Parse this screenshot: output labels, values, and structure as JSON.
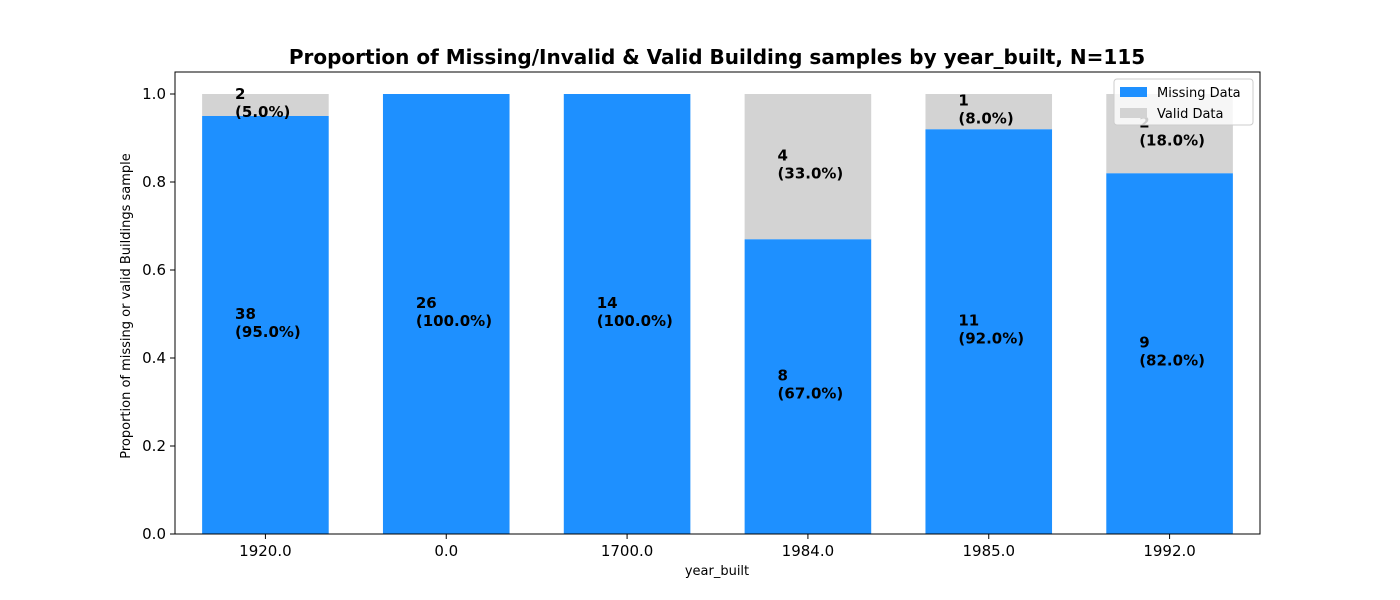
{
  "chart_data": {
    "type": "bar",
    "stacked": true,
    "title": "Proportion of Missing/Invalid & Valid Building samples by year_built, N=115",
    "xlabel": "year_built",
    "ylabel": "Proportion of missing or valid Buildings sample",
    "ylim": [
      0,
      1.05
    ],
    "yticks": [
      "0.0",
      "0.2",
      "0.4",
      "0.6",
      "0.8",
      "1.0"
    ],
    "categories": [
      "1920.0",
      "0.0",
      "1700.0",
      "1984.0",
      "1985.0",
      "1992.0"
    ],
    "series": [
      {
        "name": "Missing Data",
        "color": "#1e90ff",
        "values": [
          0.95,
          1.0,
          1.0,
          0.67,
          0.92,
          0.82
        ],
        "counts": [
          "38",
          "26",
          "14",
          "8",
          "11",
          "9"
        ],
        "percents": [
          "(95.0%)",
          "(100.0%)",
          "(100.0%)",
          "(67.0%)",
          "(92.0%)",
          "(82.0%)"
        ]
      },
      {
        "name": "Valid Data",
        "color": "#d3d3d3",
        "values": [
          0.05,
          0.0,
          0.0,
          0.33,
          0.08,
          0.18
        ],
        "counts": [
          "2",
          "",
          "",
          "4",
          "1",
          "2"
        ],
        "percents": [
          "(5.0%)",
          "",
          "",
          "(33.0%)",
          "(8.0%)",
          "(18.0%)"
        ]
      }
    ],
    "legend": {
      "position": "top-right"
    },
    "grid": false
  }
}
